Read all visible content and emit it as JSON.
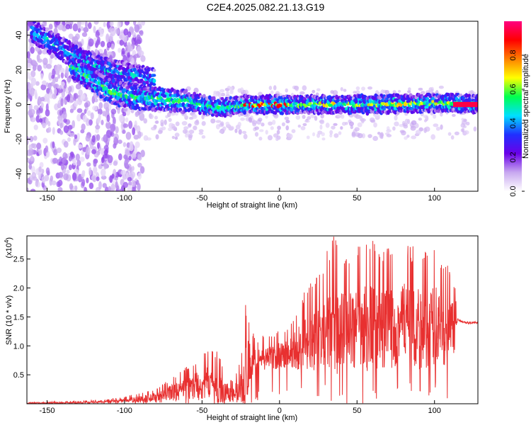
{
  "title": "C2E4.2025.082.21.13.G19",
  "chart_data": [
    {
      "type": "heatmap",
      "xlabel": "Height of straight line (km)",
      "ylabel": "Frequency (Hz)",
      "xlim": [
        -163,
        128
      ],
      "ylim": [
        -50,
        48
      ],
      "xticks": [
        -150,
        -100,
        -50,
        0,
        50,
        100
      ],
      "yticks": [
        -40,
        -20,
        0,
        20,
        40
      ],
      "colorbar": {
        "label": "Normalized spectral amplitude",
        "range": [
          0,
          1
        ],
        "ticks": [
          "0.0",
          "0.2",
          "0.4",
          "0.6",
          "0.8"
        ],
        "colors": [
          "#ffffff",
          "#c8a8f0",
          "#6a00e8",
          "#2030ff",
          "#00e0ff",
          "#00ff50",
          "#ffff00",
          "#ff8000",
          "#ff0000",
          "#ff0080"
        ]
      },
      "ridges": [
        {
          "name": "",
          "points": [
            [
              -160,
              42
            ],
            [
              -145,
              35
            ],
            [
              -130,
              26
            ],
            [
              -115,
              21
            ],
            [
              -100,
              18
            ],
            [
              -90,
              16
            ],
            [
              -80,
              14
            ]
          ]
        },
        {
          "name": "",
          "points": [
            [
              -135,
              22
            ],
            [
              -120,
              14
            ],
            [
              -110,
              8
            ],
            [
              -100,
              5
            ],
            [
              -80,
              3
            ],
            [
              -60,
              2
            ],
            [
              -40,
              -2
            ],
            [
              -20,
              0
            ],
            [
              0,
              0
            ],
            [
              50,
              0
            ],
            [
              110,
              1
            ],
            [
              128,
              0
            ]
          ]
        }
      ],
      "grid": false
    },
    {
      "type": "line",
      "xlabel": "Height of straight line (km)",
      "ylabel": "SNR (10 * v/v)",
      "yscale_label": "(x10",
      "yscale_exp": "4",
      "yscale_close": ")",
      "xlim": [
        -163,
        128
      ],
      "ylim": [
        0,
        2.9
      ],
      "xticks": [
        -150,
        -100,
        -50,
        0,
        50,
        100
      ],
      "yticks": [
        "0.5",
        "1.0",
        "1.5",
        "2.0",
        "2.5"
      ],
      "color": "#e83030",
      "envelope": {
        "x": [
          -163,
          -130,
          -110,
          -100,
          -90,
          -80,
          -70,
          -60,
          -50,
          -45,
          -40,
          -35,
          -30,
          -25,
          -22,
          -20,
          -18,
          -15,
          -10,
          -5,
          0,
          5,
          10,
          15,
          20,
          25,
          30,
          35,
          40,
          45,
          50,
          55,
          60,
          65,
          70,
          75,
          80,
          85,
          90,
          95,
          100,
          105,
          110,
          113,
          115,
          120,
          128
        ],
        "mean": [
          0.01,
          0.02,
          0.04,
          0.06,
          0.08,
          0.12,
          0.2,
          0.3,
          0.35,
          0.4,
          0.3,
          0.2,
          0.15,
          0.3,
          0.5,
          0.7,
          0.75,
          0.75,
          0.8,
          0.8,
          0.85,
          0.85,
          0.95,
          1.0,
          1.1,
          1.15,
          1.25,
          1.3,
          1.35,
          1.35,
          1.35,
          1.35,
          1.35,
          1.3,
          1.35,
          1.35,
          1.4,
          1.4,
          1.35,
          1.3,
          1.35,
          1.3,
          1.3,
          1.3,
          1.45,
          1.4,
          1.4
        ],
        "peak": [
          0.02,
          0.05,
          0.08,
          0.12,
          0.2,
          0.25,
          0.45,
          0.65,
          0.85,
          0.95,
          0.9,
          0.6,
          0.4,
          0.8,
          1.8,
          1.5,
          1.3,
          1.1,
          1.2,
          1.2,
          1.3,
          1.35,
          1.55,
          1.9,
          2.1,
          2.2,
          2.6,
          2.9,
          2.7,
          2.6,
          2.8,
          2.8,
          2.9,
          2.6,
          2.8,
          2.8,
          2.9,
          2.7,
          2.8,
          2.6,
          2.8,
          2.5,
          2.4,
          2.1,
          1.45,
          1.45,
          1.4
        ]
      }
    }
  ]
}
